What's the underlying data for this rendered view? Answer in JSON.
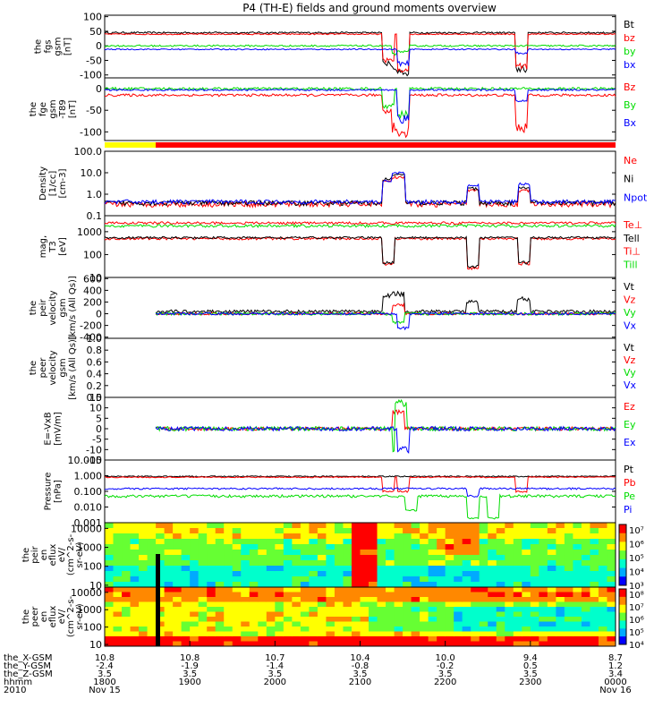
{
  "title": "P4 (TH-E) fields and ground moments overview",
  "colors": {
    "black": "#000000",
    "red": "#ff0000",
    "green": "#00dd00",
    "blue": "#0000ff",
    "yellow": "#ffff00"
  },
  "chart_data": {
    "type": "line",
    "x_axis": {
      "tick_labels": [
        "1800",
        "1900",
        "2000",
        "2100",
        "2200",
        "2300",
        "0000"
      ],
      "start_date": "Nov 15",
      "end_date": "Nov 16",
      "year": "2010",
      "ephemeris": [
        {
          "name": "the_X-GSM",
          "values": [
            "10.8",
            "10.8",
            "10.7",
            "10.4",
            "10.0",
            "9.4",
            "8.7"
          ]
        },
        {
          "name": "the_Y-GSM",
          "values": [
            "-2.4",
            "-1.9",
            "-1.4",
            "-0.8",
            "-0.2",
            "0.5",
            "1.2"
          ]
        },
        {
          "name": "the_Z-GSM",
          "values": [
            "3.5",
            "3.5",
            "3.5",
            "3.5",
            "3.5",
            "3.5",
            "3.4"
          ]
        },
        {
          "name": "hhmm",
          "values": [
            "1800",
            "1900",
            "2000",
            "2100",
            "2200",
            "2300",
            "0000"
          ]
        }
      ],
      "year_label": "2010"
    },
    "panels": [
      {
        "name": "fgs",
        "ylabel": [
          "the",
          "fgs",
          "gsm",
          "[nT]"
        ],
        "yticks": [
          "100",
          "50",
          "0",
          "-50",
          "-100"
        ],
        "ylim": [
          -110,
          105
        ],
        "series": [
          {
            "name": "Bt",
            "color": "black",
            "base": 45,
            "noise": 3,
            "events": [
              [
                0.555,
                -60
              ],
              [
                0.575,
                -80
              ],
              [
                0.585,
                -90
              ],
              [
                0.815,
                -80
              ]
            ]
          },
          {
            "name": "bz",
            "color": "red",
            "base": 40,
            "noise": 2,
            "events": [
              [
                0.555,
                -50
              ],
              [
                0.585,
                -80
              ],
              [
                0.815,
                -70
              ]
            ]
          },
          {
            "name": "by",
            "color": "green",
            "base": 0,
            "noise": 3,
            "events": [
              [
                0.575,
                -30
              ],
              [
                0.585,
                -20
              ]
            ]
          },
          {
            "name": "bx",
            "color": "blue",
            "base": -12,
            "noise": 2,
            "events": [
              [
                0.585,
                -60
              ],
              [
                0.815,
                -25
              ]
            ]
          }
        ]
      },
      {
        "name": "fge",
        "ylabel": [
          "the",
          "fge",
          "gsm",
          "-T89",
          "[nT]"
        ],
        "yticks": [
          "0",
          "-50",
          "-100"
        ],
        "ylim": [
          -120,
          25
        ],
        "series": [
          {
            "name": "Bz",
            "color": "red",
            "base": -15,
            "noise": 3,
            "events": [
              [
                0.555,
                -50
              ],
              [
                0.575,
                -90
              ],
              [
                0.585,
                -100
              ],
              [
                0.815,
                -90
              ]
            ]
          },
          {
            "name": "By",
            "color": "green",
            "base": 0,
            "noise": 3,
            "events": [
              [
                0.555,
                -40
              ],
              [
                0.585,
                -60
              ]
            ]
          },
          {
            "name": "Bx",
            "color": "blue",
            "base": -3,
            "noise": 2,
            "events": [
              [
                0.585,
                -70
              ],
              [
                0.815,
                -30
              ]
            ]
          }
        ]
      },
      {
        "name": "density",
        "ylabel": [
          "Density",
          "[1/cc]",
          "[cm-3]"
        ],
        "yticks": [
          "100.0",
          "10.0",
          "1.0",
          "0.1"
        ],
        "log": true,
        "ylim": [
          0.1,
          100
        ],
        "series": [
          {
            "name": "Ne",
            "color": "red",
            "base": 0.35,
            "noise": 0.1,
            "events": [
              [
                0.555,
                4
              ],
              [
                0.575,
                6
              ],
              [
                0.72,
                1.5
              ],
              [
                0.82,
                1.5
              ]
            ]
          },
          {
            "name": "Ni",
            "color": "black",
            "base": 0.4,
            "noise": 0.1,
            "events": [
              [
                0.555,
                5
              ],
              [
                0.575,
                8
              ],
              [
                0.72,
                1.8
              ],
              [
                0.82,
                2
              ]
            ]
          },
          {
            "name": "Npot",
            "color": "blue",
            "base": 0.45,
            "noise": 0.1,
            "events": [
              [
                0.555,
                4
              ],
              [
                0.575,
                10
              ],
              [
                0.72,
                2.5
              ],
              [
                0.82,
                3
              ]
            ]
          }
        ]
      },
      {
        "name": "temperature",
        "ylabel": [
          "mag,",
          "T3",
          "[eV]"
        ],
        "yticks": [
          "1000",
          "100",
          "10"
        ],
        "log": true,
        "ylim": [
          10,
          5000
        ],
        "series": [
          {
            "name": "Te⊥",
            "color": "red",
            "base": 500,
            "noise": 60,
            "events": [
              [
                0.555,
                40
              ],
              [
                0.72,
                25
              ],
              [
                0.82,
                40
              ]
            ]
          },
          {
            "name": "Tell",
            "color": "black",
            "base": 550,
            "noise": 60,
            "events": [
              [
                0.555,
                45
              ],
              [
                0.72,
                30
              ],
              [
                0.82,
                45
              ]
            ]
          },
          {
            "name": "Ti⊥",
            "color": "red",
            "base": 2400,
            "noise": 300,
            "events": []
          },
          {
            "name": "Till",
            "color": "green",
            "base": 1800,
            "noise": 250,
            "events": []
          }
        ]
      },
      {
        "name": "velocity-eesa",
        "ylabel": [
          "the",
          "peir",
          "velocity",
          "gsm",
          "[km/s (All Qs)]"
        ],
        "yticks": [
          "600",
          "400",
          "200",
          "0",
          "-200",
          "-400"
        ],
        "ylim": [
          -420,
          620
        ],
        "start": 0.1,
        "series": [
          {
            "name": "Vt",
            "color": "black",
            "base": 40,
            "noise": 25,
            "events": [
              [
                0.555,
                300
              ],
              [
                0.575,
                350
              ],
              [
                0.72,
                200
              ],
              [
                0.82,
                250
              ]
            ]
          },
          {
            "name": "Vz",
            "color": "red",
            "base": 0,
            "noise": 20,
            "events": [
              [
                0.575,
                150
              ]
            ]
          },
          {
            "name": "Vy",
            "color": "green",
            "base": 0,
            "noise": 25,
            "events": [
              [
                0.575,
                -150
              ]
            ]
          },
          {
            "name": "Vx",
            "color": "blue",
            "base": 0,
            "noise": 20,
            "events": [
              [
                0.585,
                -250
              ]
            ]
          }
        ]
      },
      {
        "name": "velocity-empty",
        "ylabel": [
          "the",
          "peer",
          "velocity",
          "gsm",
          "[km/s (All Qs)]"
        ],
        "yticks": [
          "1.0",
          "0.8",
          "0.6",
          "0.4",
          "0.2",
          "0.0"
        ],
        "ylim": [
          0,
          1
        ],
        "series": [
          {
            "name": "Vt",
            "color": "black"
          },
          {
            "name": "Vz",
            "color": "red"
          },
          {
            "name": "Vy",
            "color": "green"
          },
          {
            "name": "Vx",
            "color": "blue"
          }
        ]
      },
      {
        "name": "efield",
        "ylabel": [
          "E=-VxB",
          "[mV/m]"
        ],
        "yticks": [
          "15",
          "10",
          "5",
          "0",
          "-5",
          "-10",
          "-15"
        ],
        "ylim": [
          -15,
          15
        ],
        "start": 0.1,
        "series": [
          {
            "name": "Ez",
            "color": "red",
            "base": 0,
            "noise": 0.8,
            "events": [
              [
                0.575,
                8
              ]
            ]
          },
          {
            "name": "Ey",
            "color": "green",
            "base": 0,
            "noise": 1,
            "events": [
              [
                0.575,
                -10
              ],
              [
                0.58,
                12
              ]
            ]
          },
          {
            "name": "Ex",
            "color": "blue",
            "base": 0,
            "noise": 1,
            "events": [
              [
                0.585,
                -10
              ]
            ]
          }
        ]
      },
      {
        "name": "pressure",
        "ylabel": [
          "Pressure",
          "[nPa]"
        ],
        "yticks": [
          "10.000",
          "1.000",
          "0.100",
          "0.010",
          "0.001"
        ],
        "log": true,
        "ylim": [
          0.001,
          10
        ],
        "series": [
          {
            "name": "Pt",
            "color": "black",
            "base": 0.9,
            "noise": 0.08,
            "events": []
          },
          {
            "name": "Pb",
            "color": "red",
            "base": 0.8,
            "noise": 0.06,
            "events": [
              [
                0.555,
                0.1
              ],
              [
                0.585,
                0.1
              ],
              [
                0.815,
                0.1
              ]
            ]
          },
          {
            "name": "Pe",
            "color": "green",
            "base": 0.05,
            "noise": 0.01,
            "events": [
              [
                0.6,
                0.006
              ],
              [
                0.72,
                0.002
              ],
              [
                0.76,
                0.002
              ]
            ]
          },
          {
            "name": "Pi",
            "color": "blue",
            "base": 0.15,
            "noise": 0.02,
            "events": [
              [
                0.72,
                0.05
              ]
            ]
          }
        ]
      }
    ],
    "spectrograms": [
      {
        "name": "ion-eflux",
        "ylabel": [
          "the",
          "peir",
          "en",
          "eflux",
          "eV/",
          "(cm^2-s-",
          "sr-eV)"
        ],
        "yticks": [
          "10000",
          "1000",
          "100",
          "10"
        ],
        "colorbar": [
          "10⁷",
          "10⁶",
          "10⁵",
          "10⁴",
          "10³"
        ]
      },
      {
        "name": "electron-eflux",
        "ylabel": [
          "the",
          "peer",
          "en",
          "eflux",
          "eV/",
          "(cm^2-s-",
          "sr-eV)"
        ],
        "yticks": [
          "10000",
          "1000",
          "100",
          "10"
        ],
        "colorbar": [
          "10⁸",
          "10⁷",
          "10⁶",
          "10⁵",
          "10⁴"
        ]
      }
    ]
  }
}
